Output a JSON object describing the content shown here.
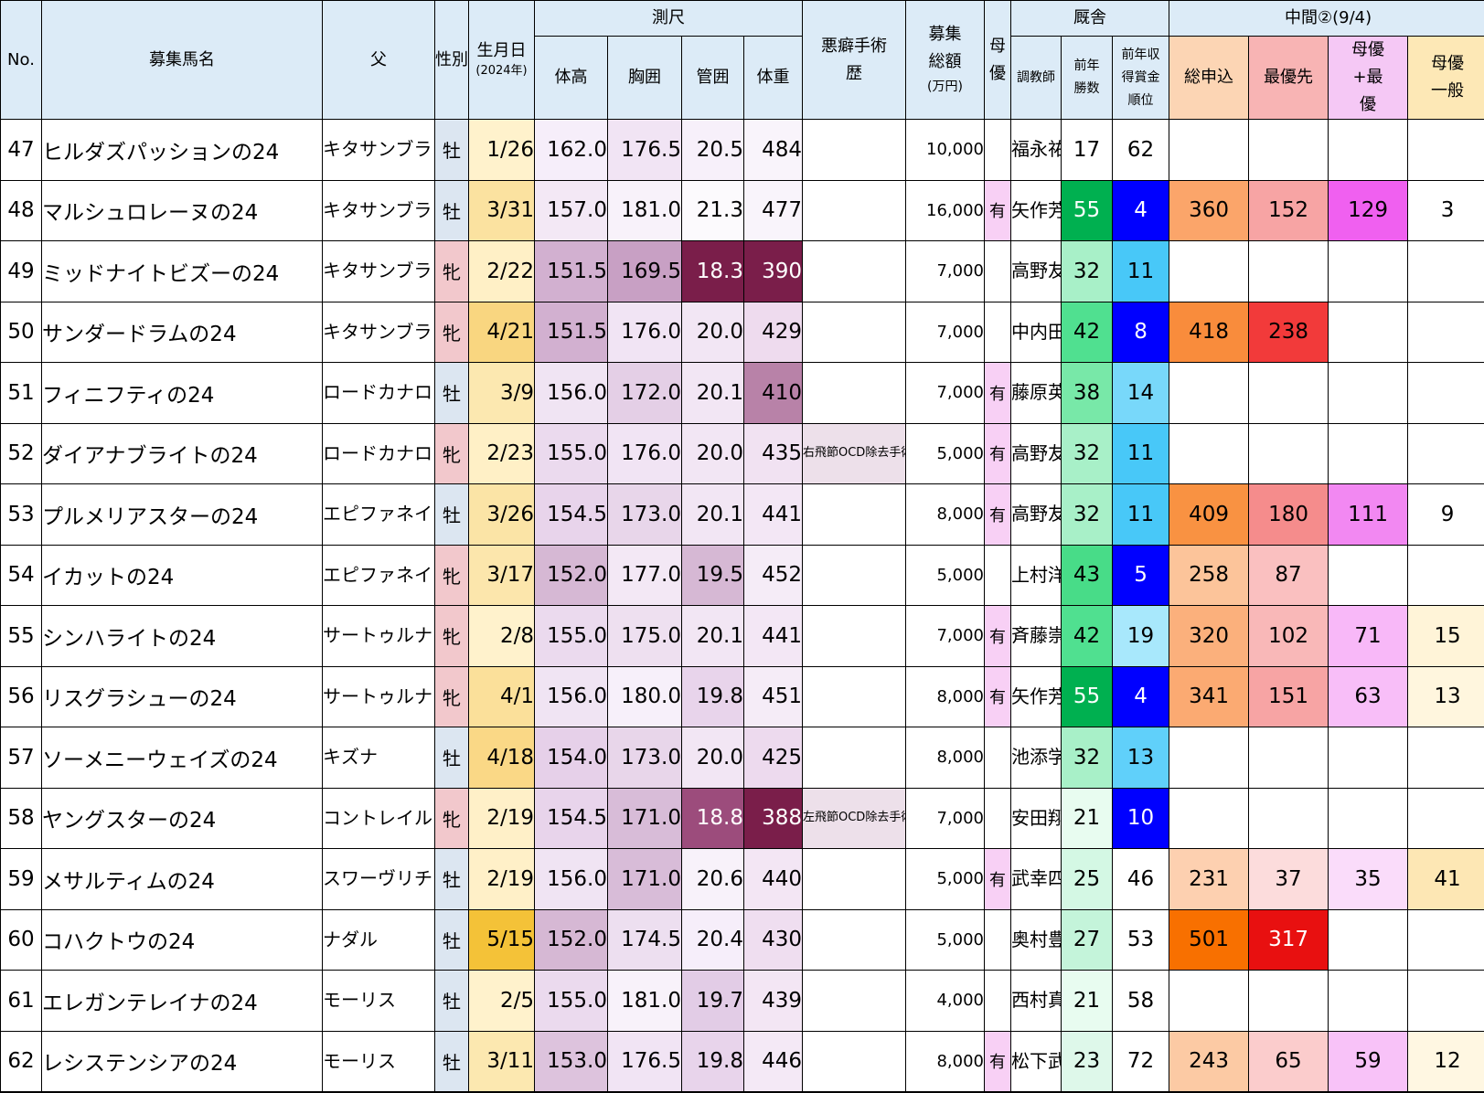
{
  "header": {
    "no": "No.",
    "name": "募集馬名",
    "sire": "父",
    "sex": "性別",
    "birth": "生月日",
    "birth_sub": "(2024年)",
    "measure_group": "測尺",
    "height": "体高",
    "girth": "胸囲",
    "cannon": "管囲",
    "weight": "体重",
    "vice": "悪癖手術歴",
    "price": "募集総額",
    "price_sub": "(万円)",
    "mother_priority": "母優",
    "stable_group": "厩舎",
    "trainer": "調教師",
    "wins": "前年勝数",
    "rank": "前年収得賞金順位",
    "interim_group": "中間②(9/4)",
    "total": "総申込",
    "top": "最優先",
    "mb": "母優+最優",
    "mg": "母優一般"
  },
  "colors": {
    "header_bg": "#dcebf7",
    "male_bg": "#dce6f1",
    "female_bg": "#f2c8cc",
    "mother_bg": "#f8d0f5",
    "vice_bg": "#ede0ea",
    "total_head": "#fcd5b4",
    "best_head": "#f8b4b4",
    "mb_head": "#f5c8f5",
    "mg_head": "#fde8b6"
  },
  "rows": [
    {
      "no": "47",
      "name": "ヒルダズパッションの24",
      "sire": "キタサンブラック",
      "sex": "牡",
      "sex_type": "m",
      "birth": "1/26",
      "birth_bg": "#fff2cc",
      "height": "162.0",
      "height_bg": "#f6eefa",
      "girth": "176.5",
      "girth_bg": "#f1e4f4",
      "cannon": "20.5",
      "cannon_bg": "#f7f0fa",
      "weight": "484",
      "weight_bg": "#f9f4fb",
      "vice": "",
      "price": "10,000",
      "mother": "",
      "trainer": "福永祐一",
      "wins": "17",
      "wins_bg": "#ffffff",
      "rank": "62",
      "rank_bg": "#ffffff",
      "rank_fg": "#000000",
      "total": "",
      "total_bg": "#ffffff",
      "top": "",
      "top_bg": "#ffffff",
      "mb": "",
      "mb_bg": "#ffffff",
      "mg": "",
      "mg_bg": "#ffffff"
    },
    {
      "no": "48",
      "name": "マルシュロレーヌの24",
      "sire": "キタサンブラック",
      "sex": "牡",
      "sex_type": "m",
      "birth": "3/31",
      "birth_bg": "#fbe2a0",
      "height": "157.0",
      "height_bg": "#f3e8f5",
      "girth": "181.0",
      "girth_bg": "#f8f2fa",
      "cannon": "21.3",
      "cannon_bg": "#fcfafd",
      "weight": "477",
      "weight_bg": "#f9f4fb",
      "vice": "",
      "price": "16,000",
      "mother": "有",
      "trainer": "矢作芳人",
      "wins": "55",
      "wins_bg": "#00b050",
      "rank": "4",
      "rank_bg": "#0000ff",
      "rank_fg": "#ffffff",
      "total": "360",
      "total_bg": "#fba56a",
      "top": "152",
      "top_bg": "#f7a4a4",
      "mb": "129",
      "mb_bg": "#f060f0",
      "mg": "3",
      "mg_bg": "#ffffff"
    },
    {
      "no": "49",
      "name": "ミッドナイトビズーの24",
      "sire": "キタサンブラック",
      "sex": "牝",
      "sex_type": "f",
      "birth": "2/22",
      "birth_bg": "#fff0c6",
      "height": "151.5",
      "height_bg": "#d2b0d0",
      "girth": "169.5",
      "girth_bg": "#c8a0c4",
      "cannon": "18.3",
      "cannon_bg": "#7a1e4a",
      "weight": "390",
      "weight_bg": "#7a1e4a",
      "vice": "",
      "price": "7,000",
      "mother": "",
      "trainer": "高野友和",
      "wins": "32",
      "wins_bg": "#a8f0c8",
      "rank": "11",
      "rank_bg": "#48c8f8",
      "rank_fg": "#000000",
      "total": "",
      "total_bg": "#ffffff",
      "top": "",
      "top_bg": "#ffffff",
      "mb": "",
      "mb_bg": "#ffffff",
      "mg": "",
      "mg_bg": "#ffffff"
    },
    {
      "no": "50",
      "name": "サンダードラムの24",
      "sire": "キタサンブラック",
      "sex": "牝",
      "sex_type": "f",
      "birth": "4/21",
      "birth_bg": "#f9d680",
      "height": "151.5",
      "height_bg": "#d2b0d0",
      "girth": "176.0",
      "girth_bg": "#f1e4f4",
      "cannon": "20.0",
      "cannon_bg": "#f2e6f4",
      "weight": "429",
      "weight_bg": "#eedbee",
      "vice": "",
      "price": "7,000",
      "mother": "",
      "trainer": "中内田充",
      "wins": "42",
      "wins_bg": "#50e090",
      "rank": "8",
      "rank_bg": "#0000ff",
      "rank_fg": "#ffffff",
      "total": "418",
      "total_bg": "#f98c3c",
      "top": "238",
      "top_bg": "#f23a3a",
      "mb": "",
      "mb_bg": "#ffffff",
      "mg": "",
      "mg_bg": "#ffffff"
    },
    {
      "no": "51",
      "name": "フィニフティの24",
      "sire": "ロードカナロア",
      "sex": "牡",
      "sex_type": "m",
      "birth": "3/9",
      "birth_bg": "#fce8b0",
      "height": "156.0",
      "height_bg": "#f0e4f3",
      "girth": "172.0",
      "girth_bg": "#e4cfe6",
      "cannon": "20.1",
      "cannon_bg": "#f2e6f4",
      "weight": "410",
      "weight_bg": "#b882a8",
      "vice": "",
      "price": "7,000",
      "mother": "有",
      "trainer": "藤原英昭",
      "wins": "38",
      "wins_bg": "#78e8a8",
      "rank": "14",
      "rank_bg": "#78d8fa",
      "rank_fg": "#000000",
      "total": "",
      "total_bg": "#ffffff",
      "top": "",
      "top_bg": "#ffffff",
      "mb": "",
      "mb_bg": "#ffffff",
      "mg": "",
      "mg_bg": "#ffffff"
    },
    {
      "no": "52",
      "name": "ダイアナブライトの24",
      "sire": "ロードカナロア",
      "sex": "牝",
      "sex_type": "f",
      "birth": "2/23",
      "birth_bg": "#fff0c6",
      "height": "155.0",
      "height_bg": "#ebdaee",
      "girth": "176.0",
      "girth_bg": "#f1e4f4",
      "cannon": "20.0",
      "cannon_bg": "#f2e6f4",
      "weight": "435",
      "weight_bg": "#f1e2f2",
      "vice": "右飛節OCD除去手術",
      "price": "5,000",
      "mother": "有",
      "trainer": "高野友和",
      "wins": "32",
      "wins_bg": "#a8f0c8",
      "rank": "11",
      "rank_bg": "#48c8f8",
      "rank_fg": "#000000",
      "total": "",
      "total_bg": "#ffffff",
      "top": "",
      "top_bg": "#ffffff",
      "mb": "",
      "mb_bg": "#ffffff",
      "mg": "",
      "mg_bg": "#ffffff"
    },
    {
      "no": "53",
      "name": "プルメリアスターの24",
      "sire": "エピファネイア",
      "sex": "牡",
      "sex_type": "m",
      "birth": "3/26",
      "birth_bg": "#fbe4a6",
      "height": "154.5",
      "height_bg": "#e8d4eb",
      "girth": "173.0",
      "girth_bg": "#e8d6ea",
      "cannon": "20.1",
      "cannon_bg": "#f2e6f4",
      "weight": "441",
      "weight_bg": "#f3e7f5",
      "vice": "",
      "price": "8,000",
      "mother": "有",
      "trainer": "高野友和",
      "wins": "32",
      "wins_bg": "#a8f0c8",
      "rank": "11",
      "rank_bg": "#48c8f8",
      "rank_fg": "#000000",
      "total": "409",
      "total_bg": "#f99242",
      "top": "180",
      "top_bg": "#f58c8c",
      "mb": "111",
      "mb_bg": "#f288f2",
      "mg": "9",
      "mg_bg": "#ffffff"
    },
    {
      "no": "54",
      "name": "イカットの24",
      "sire": "エピファネイア",
      "sex": "牝",
      "sex_type": "f",
      "birth": "3/17",
      "birth_bg": "#fce6ac",
      "height": "152.0",
      "height_bg": "#d6b8d4",
      "girth": "177.0",
      "girth_bg": "#f3e8f5",
      "cannon": "19.5",
      "cannon_bg": "#d6b8d4",
      "weight": "452",
      "weight_bg": "#f5ecf7",
      "vice": "",
      "price": "5,000",
      "mother": "",
      "trainer": "上村洋行",
      "wins": "43",
      "wins_bg": "#48dc88",
      "rank": "5",
      "rank_bg": "#0000ff",
      "rank_fg": "#ffffff",
      "total": "258",
      "total_bg": "#fcc49a",
      "top": "87",
      "top_bg": "#fac0c0",
      "mb": "",
      "mb_bg": "#ffffff",
      "mg": "",
      "mg_bg": "#ffffff"
    },
    {
      "no": "55",
      "name": "シンハライトの24",
      "sire": "サートゥルナーリア",
      "sex": "牝",
      "sex_type": "f",
      "birth": "2/8",
      "birth_bg": "#fff2cc",
      "height": "155.0",
      "height_bg": "#ebdaee",
      "girth": "175.0",
      "girth_bg": "#eee0f0",
      "cannon": "20.1",
      "cannon_bg": "#f2e6f4",
      "weight": "441",
      "weight_bg": "#f3e7f5",
      "vice": "",
      "price": "7,000",
      "mother": "有",
      "trainer": "斉藤崇史",
      "wins": "42",
      "wins_bg": "#50e090",
      "rank": "19",
      "rank_bg": "#a8e8fc",
      "rank_fg": "#000000",
      "total": "320",
      "total_bg": "#fbb07c",
      "top": "102",
      "top_bg": "#f9b8b8",
      "mb": "71",
      "mb_bg": "#f8b8f8",
      "mg": "15",
      "mg_bg": "#fff4d8"
    },
    {
      "no": "56",
      "name": "リスグラシューの24",
      "sire": "サートゥルナーリア",
      "sex": "牝",
      "sex_type": "f",
      "birth": "4/1",
      "birth_bg": "#fbe09a",
      "height": "156.0",
      "height_bg": "#f0e4f3",
      "girth": "180.0",
      "girth_bg": "#f7f0fa",
      "cannon": "19.8",
      "cannon_bg": "#e8d4eb",
      "weight": "451",
      "weight_bg": "#f5ecf7",
      "vice": "",
      "price": "8,000",
      "mother": "有",
      "trainer": "矢作芳人",
      "wins": "55",
      "wins_bg": "#00b050",
      "rank": "4",
      "rank_bg": "#0000ff",
      "rank_fg": "#ffffff",
      "total": "341",
      "total_bg": "#fbaa72",
      "top": "151",
      "top_bg": "#f7a4a4",
      "mb": "63",
      "mb_bg": "#f8bef8",
      "mg": "13",
      "mg_bg": "#fff6de"
    },
    {
      "no": "57",
      "name": "ソーメニーウェイズの24",
      "sire": "キズナ",
      "sex": "牡",
      "sex_type": "m",
      "birth": "4/18",
      "birth_bg": "#fad886",
      "height": "154.0",
      "height_bg": "#e6d0e9",
      "girth": "173.0",
      "girth_bg": "#e8d6ea",
      "cannon": "20.0",
      "cannon_bg": "#f2e6f4",
      "weight": "425",
      "weight_bg": "#eddaee",
      "vice": "",
      "price": "8,000",
      "mother": "",
      "trainer": "池添学",
      "wins": "32",
      "wins_bg": "#a8f0c8",
      "rank": "13",
      "rank_bg": "#60d0fa",
      "rank_fg": "#000000",
      "total": "",
      "total_bg": "#ffffff",
      "top": "",
      "top_bg": "#ffffff",
      "mb": "",
      "mb_bg": "#ffffff",
      "mg": "",
      "mg_bg": "#ffffff"
    },
    {
      "no": "58",
      "name": "ヤングスターの24",
      "sire": "コントレイル",
      "sex": "牝",
      "sex_type": "f",
      "birth": "2/19",
      "birth_bg": "#fff0c8",
      "height": "154.5",
      "height_bg": "#e8d4eb",
      "girth": "171.0",
      "girth_bg": "#d8bcd8",
      "cannon": "18.8",
      "cannon_bg": "#9c4c7c",
      "weight": "388",
      "weight_bg": "#7a1e4a",
      "vice": "左飛節OCD除去手術",
      "price": "7,000",
      "mother": "",
      "trainer": "安田翔伍",
      "wins": "21",
      "wins_bg": "#e8fcf0",
      "rank": "10",
      "rank_bg": "#0000ff",
      "rank_fg": "#ffffff",
      "total": "",
      "total_bg": "#ffffff",
      "top": "",
      "top_bg": "#ffffff",
      "mb": "",
      "mb_bg": "#ffffff",
      "mg": "",
      "mg_bg": "#ffffff"
    },
    {
      "no": "59",
      "name": "メサルティムの24",
      "sire": "スワーヴリチャード",
      "sex": "牡",
      "sex_type": "m",
      "birth": "2/19",
      "birth_bg": "#fff0c8",
      "height": "156.0",
      "height_bg": "#f0e4f3",
      "girth": "171.0",
      "girth_bg": "#d8bcd8",
      "cannon": "20.6",
      "cannon_bg": "#f8f2fa",
      "weight": "440",
      "weight_bg": "#f3e6f4",
      "vice": "",
      "price": "5,000",
      "mother": "有",
      "trainer": "武幸四郎",
      "wins": "25",
      "wins_bg": "#d4f8e4",
      "rank": "46",
      "rank_bg": "#ffffff",
      "rank_fg": "#000000",
      "total": "231",
      "total_bg": "#fdd0b0",
      "top": "37",
      "top_bg": "#fcdcdc",
      "mb": "35",
      "mb_bg": "#fadcfa",
      "mg": "41",
      "mg_bg": "#fde7b4"
    },
    {
      "no": "60",
      "name": "コハクトウの24",
      "sire": "ナダル",
      "sex": "牡",
      "sex_type": "m",
      "birth": "5/15",
      "birth_bg": "#f4c238",
      "height": "152.0",
      "height_bg": "#d6b8d4",
      "girth": "174.5",
      "girth_bg": "#eddff0",
      "cannon": "20.4",
      "cannon_bg": "#f6eefa",
      "weight": "430",
      "weight_bg": "#efdef0",
      "vice": "",
      "price": "5,000",
      "mother": "",
      "trainer": "奥村豊",
      "wins": "27",
      "wins_bg": "#c4f4da",
      "rank": "53",
      "rank_bg": "#ffffff",
      "rank_fg": "#000000",
      "total": "501",
      "total_bg": "#f87000",
      "top": "317",
      "top_bg": "#e81010",
      "mb": "",
      "mb_bg": "#ffffff",
      "mg": "",
      "mg_bg": "#ffffff"
    },
    {
      "no": "61",
      "name": "エレガンテレイナの24",
      "sire": "モーリス",
      "sex": "牡",
      "sex_type": "m",
      "birth": "2/5",
      "birth_bg": "#fff2cc",
      "height": "155.0",
      "height_bg": "#ebdaee",
      "girth": "181.0",
      "girth_bg": "#f8f2fa",
      "cannon": "19.7",
      "cannon_bg": "#e2cce6",
      "weight": "439",
      "weight_bg": "#f3e6f4",
      "vice": "",
      "price": "4,000",
      "mother": "",
      "trainer": "西村真幸",
      "wins": "21",
      "wins_bg": "#e8fcf0",
      "rank": "58",
      "rank_bg": "#ffffff",
      "rank_fg": "#000000",
      "total": "",
      "total_bg": "#ffffff",
      "top": "",
      "top_bg": "#ffffff",
      "mb": "",
      "mb_bg": "#ffffff",
      "mg": "",
      "mg_bg": "#ffffff"
    },
    {
      "no": "62",
      "name": "レシステンシアの24",
      "sire": "モーリス",
      "sex": "牡",
      "sex_type": "m",
      "birth": "3/11",
      "birth_bg": "#fce8b0",
      "height": "153.0",
      "height_bg": "#ddc3dd",
      "girth": "176.5",
      "girth_bg": "#f1e4f4",
      "cannon": "19.8",
      "cannon_bg": "#e8d4eb",
      "weight": "446",
      "weight_bg": "#f4e9f6",
      "vice": "",
      "price": "8,000",
      "mother": "有",
      "trainer": "松下武士",
      "wins": "23",
      "wins_bg": "#def8ea",
      "rank": "72",
      "rank_bg": "#ffffff",
      "rank_fg": "#000000",
      "total": "243",
      "total_bg": "#fcca a4",
      "top": "65",
      "top_bg": "#fbcccc",
      "mb": "59",
      "mb_bg": "#f8c2f8",
      "mg": "12",
      "mg_bg": "#fff7e2"
    }
  ]
}
